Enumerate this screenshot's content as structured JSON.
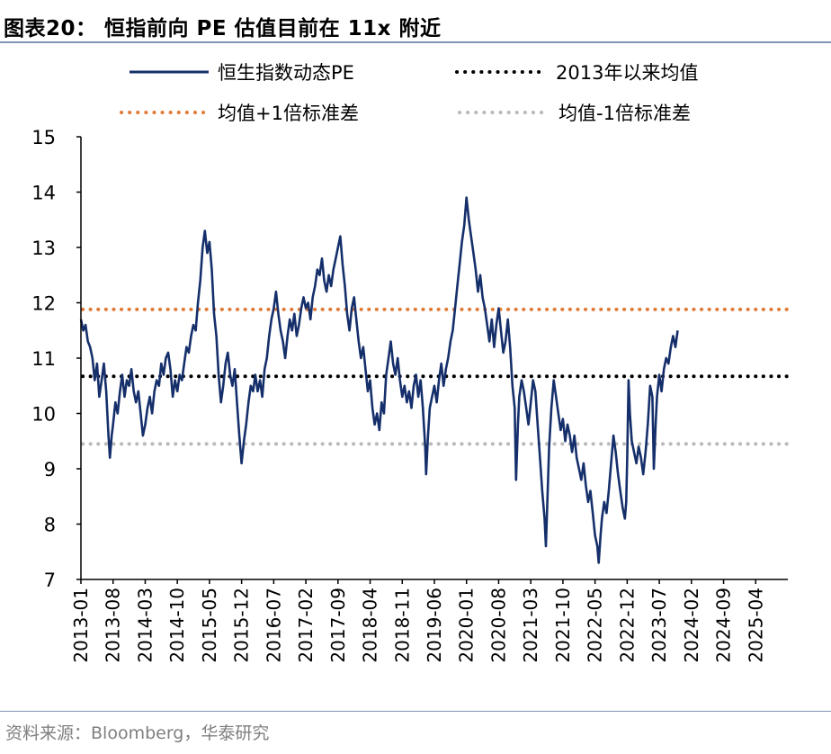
{
  "title": "图表20：  恒指前向 PE 估值目前在 11x 附近",
  "source": "资料来源：Bloomberg，华泰研究",
  "colors": {
    "pe_line": "#152F6B",
    "mean_line": "#000000",
    "plus_sd_line": "#E07B39",
    "minus_sd_line": "#B9B9B9",
    "axis": "#000000",
    "rule": "#7F96B2"
  },
  "chart_data": {
    "type": "line",
    "title": "",
    "xlabel": "",
    "ylabel": "",
    "ylim": [
      7,
      15
    ],
    "y_ticks": [
      "7",
      "8",
      "9",
      "10",
      "11",
      "12",
      "13",
      "14",
      "15"
    ],
    "x_tick_labels": [
      "2013-01",
      "2013-08",
      "2014-03",
      "2014-10",
      "2015-05",
      "2015-12",
      "2016-07",
      "2017-02",
      "2017-09",
      "2018-04",
      "2018-11",
      "2019-06",
      "2020-01",
      "2020-08",
      "2021-03",
      "2021-10",
      "2022-05",
      "2022-12",
      "2023-07",
      "2024-02",
      "2024-09",
      "2025-04"
    ],
    "x_range_months": [
      0,
      154
    ],
    "legend": [
      "恒生指数动态PE",
      "2013年以来均值",
      "均值+1倍标准差",
      "均值-1倍标准差"
    ],
    "reference_lines": [
      {
        "name": "2013年以来均值",
        "value": 10.67
      },
      {
        "name": "均值+1倍标准差",
        "value": 11.88
      },
      {
        "name": "均值-1倍标准差",
        "value": 9.45
      }
    ],
    "series": [
      {
        "name": "恒生指数动态PE",
        "x_unit": "months since 2013-01",
        "points": [
          [
            0,
            11.7
          ],
          [
            0.5,
            11.5
          ],
          [
            1,
            11.6
          ],
          [
            1.5,
            11.3
          ],
          [
            2,
            11.2
          ],
          [
            2.5,
            11.0
          ],
          [
            3,
            10.6
          ],
          [
            3.5,
            10.9
          ],
          [
            4,
            10.3
          ],
          [
            4.5,
            10.6
          ],
          [
            5,
            10.9
          ],
          [
            5.5,
            10.4
          ],
          [
            6,
            9.6
          ],
          [
            6.3,
            9.2
          ],
          [
            6.7,
            9.6
          ],
          [
            7,
            9.8
          ],
          [
            7.5,
            10.2
          ],
          [
            8,
            10.0
          ],
          [
            8.5,
            10.4
          ],
          [
            9,
            10.7
          ],
          [
            9.5,
            10.3
          ],
          [
            10,
            10.6
          ],
          [
            10.5,
            10.5
          ],
          [
            11,
            10.8
          ],
          [
            11.5,
            10.4
          ],
          [
            12,
            10.2
          ],
          [
            12.5,
            10.4
          ],
          [
            13,
            10.0
          ],
          [
            13.5,
            9.6
          ],
          [
            14,
            9.8
          ],
          [
            14.5,
            10.1
          ],
          [
            15,
            10.3
          ],
          [
            15.5,
            10.0
          ],
          [
            16,
            10.4
          ],
          [
            16.5,
            10.6
          ],
          [
            17,
            10.5
          ],
          [
            17.5,
            10.9
          ],
          [
            18,
            10.7
          ],
          [
            18.5,
            11.0
          ],
          [
            19,
            11.1
          ],
          [
            19.5,
            10.8
          ],
          [
            20,
            10.3
          ],
          [
            20.5,
            10.6
          ],
          [
            21,
            10.4
          ],
          [
            21.5,
            10.7
          ],
          [
            22,
            10.6
          ],
          [
            22.5,
            10.9
          ],
          [
            23,
            11.2
          ],
          [
            23.5,
            11.1
          ],
          [
            24,
            11.4
          ],
          [
            24.5,
            11.6
          ],
          [
            25,
            11.5
          ],
          [
            25.5,
            12.0
          ],
          [
            26,
            12.4
          ],
          [
            26.5,
            13.0
          ],
          [
            27,
            13.3
          ],
          [
            27.5,
            12.9
          ],
          [
            28,
            13.1
          ],
          [
            28.5,
            12.6
          ],
          [
            29,
            11.8
          ],
          [
            29.5,
            11.4
          ],
          [
            30,
            10.7
          ],
          [
            30.5,
            10.2
          ],
          [
            31,
            10.5
          ],
          [
            31.5,
            10.9
          ],
          [
            32,
            11.1
          ],
          [
            32.5,
            10.7
          ],
          [
            33,
            10.5
          ],
          [
            33.5,
            10.8
          ],
          [
            34,
            10.2
          ],
          [
            34.5,
            9.6
          ],
          [
            35,
            9.1
          ],
          [
            35.5,
            9.5
          ],
          [
            36,
            9.8
          ],
          [
            36.5,
            10.2
          ],
          [
            37,
            10.5
          ],
          [
            37.5,
            10.4
          ],
          [
            38,
            10.7
          ],
          [
            38.5,
            10.4
          ],
          [
            39,
            10.6
          ],
          [
            39.5,
            10.3
          ],
          [
            40,
            10.8
          ],
          [
            40.5,
            11.0
          ],
          [
            41,
            11.4
          ],
          [
            41.5,
            11.7
          ],
          [
            42,
            11.9
          ],
          [
            42.5,
            12.2
          ],
          [
            43,
            11.8
          ],
          [
            43.5,
            11.5
          ],
          [
            44,
            11.3
          ],
          [
            44.5,
            11.0
          ],
          [
            45,
            11.4
          ],
          [
            45.5,
            11.7
          ],
          [
            46,
            11.5
          ],
          [
            46.5,
            11.8
          ],
          [
            47,
            11.4
          ],
          [
            47.5,
            11.6
          ],
          [
            48,
            11.9
          ],
          [
            48.5,
            12.1
          ],
          [
            49,
            11.9
          ],
          [
            49.5,
            12.0
          ],
          [
            50,
            11.7
          ],
          [
            50.5,
            12.1
          ],
          [
            51,
            12.3
          ],
          [
            51.5,
            12.6
          ],
          [
            52,
            12.5
          ],
          [
            52.5,
            12.8
          ],
          [
            53,
            12.4
          ],
          [
            53.5,
            12.2
          ],
          [
            54,
            12.5
          ],
          [
            54.5,
            12.3
          ],
          [
            55,
            12.6
          ],
          [
            55.5,
            12.8
          ],
          [
            56,
            13.0
          ],
          [
            56.5,
            13.2
          ],
          [
            57,
            12.7
          ],
          [
            57.5,
            12.3
          ],
          [
            58,
            11.8
          ],
          [
            58.5,
            11.5
          ],
          [
            59,
            11.9
          ],
          [
            59.5,
            12.1
          ],
          [
            60,
            11.7
          ],
          [
            60.5,
            11.3
          ],
          [
            61,
            11.0
          ],
          [
            61.5,
            11.2
          ],
          [
            62,
            10.8
          ],
          [
            62.5,
            10.4
          ],
          [
            63,
            10.6
          ],
          [
            63.5,
            10.1
          ],
          [
            64,
            9.8
          ],
          [
            64.5,
            10.0
          ],
          [
            65,
            9.7
          ],
          [
            65.5,
            10.2
          ],
          [
            66,
            10.0
          ],
          [
            66.5,
            10.7
          ],
          [
            67,
            11.0
          ],
          [
            67.5,
            11.3
          ],
          [
            68,
            10.9
          ],
          [
            68.5,
            10.7
          ],
          [
            69,
            11.0
          ],
          [
            69.5,
            10.6
          ],
          [
            70,
            10.3
          ],
          [
            70.5,
            10.5
          ],
          [
            71,
            10.2
          ],
          [
            71.5,
            10.4
          ],
          [
            72,
            10.1
          ],
          [
            72.5,
            10.5
          ],
          [
            73,
            10.7
          ],
          [
            73.5,
            10.3
          ],
          [
            74,
            10.6
          ],
          [
            74.5,
            10.1
          ],
          [
            75,
            9.4
          ],
          [
            75.2,
            8.9
          ],
          [
            75.6,
            9.6
          ],
          [
            76,
            10.1
          ],
          [
            76.5,
            10.3
          ],
          [
            77,
            10.5
          ],
          [
            77.5,
            10.2
          ],
          [
            78,
            10.6
          ],
          [
            78.5,
            10.9
          ],
          [
            79,
            10.5
          ],
          [
            79.5,
            10.8
          ],
          [
            80,
            11.0
          ],
          [
            80.5,
            11.3
          ],
          [
            81,
            11.5
          ],
          [
            81.5,
            11.9
          ],
          [
            82,
            12.3
          ],
          [
            82.5,
            12.7
          ],
          [
            83,
            13.1
          ],
          [
            83.5,
            13.4
          ],
          [
            84,
            13.9
          ],
          [
            84.5,
            13.5
          ],
          [
            85,
            13.2
          ],
          [
            85.5,
            12.9
          ],
          [
            86,
            12.6
          ],
          [
            86.5,
            12.2
          ],
          [
            87,
            12.5
          ],
          [
            87.5,
            12.1
          ],
          [
            88,
            11.9
          ],
          [
            88.5,
            11.6
          ],
          [
            89,
            11.3
          ],
          [
            89.5,
            11.7
          ],
          [
            90,
            11.2
          ],
          [
            90.5,
            11.6
          ],
          [
            91,
            11.9
          ],
          [
            91.5,
            11.5
          ],
          [
            92,
            11.1
          ],
          [
            92.5,
            11.3
          ],
          [
            93,
            11.7
          ],
          [
            93.5,
            11.2
          ],
          [
            94,
            10.5
          ],
          [
            94.5,
            10.1
          ],
          [
            94.8,
            8.8
          ],
          [
            95.2,
            9.8
          ],
          [
            95.5,
            10.3
          ],
          [
            96,
            10.6
          ],
          [
            96.5,
            10.4
          ],
          [
            97,
            10.1
          ],
          [
            97.5,
            9.8
          ],
          [
            98,
            10.2
          ],
          [
            98.5,
            10.6
          ],
          [
            99,
            10.4
          ],
          [
            99.5,
            9.8
          ],
          [
            100,
            9.2
          ],
          [
            100.5,
            8.6
          ],
          [
            101,
            8.1
          ],
          [
            101.3,
            7.6
          ],
          [
            101.6,
            8.4
          ],
          [
            102,
            9.4
          ],
          [
            102.5,
            10.1
          ],
          [
            103,
            10.6
          ],
          [
            103.5,
            10.3
          ],
          [
            104,
            10.0
          ],
          [
            104.5,
            9.7
          ],
          [
            105,
            9.9
          ],
          [
            105.5,
            9.5
          ],
          [
            106,
            9.8
          ],
          [
            106.5,
            9.6
          ],
          [
            107,
            9.3
          ],
          [
            107.5,
            9.6
          ],
          [
            108,
            9.2
          ],
          [
            108.5,
            9.0
          ],
          [
            109,
            8.8
          ],
          [
            109.5,
            9.1
          ],
          [
            110,
            8.7
          ],
          [
            110.5,
            8.4
          ],
          [
            111,
            8.6
          ],
          [
            111.5,
            8.2
          ],
          [
            112,
            7.8
          ],
          [
            112.5,
            7.6
          ],
          [
            112.8,
            7.3
          ],
          [
            113.2,
            7.8
          ],
          [
            113.5,
            8.1
          ],
          [
            114,
            8.4
          ],
          [
            114.5,
            8.2
          ],
          [
            115,
            8.6
          ],
          [
            115.5,
            9.1
          ],
          [
            116,
            9.6
          ],
          [
            116.5,
            9.3
          ],
          [
            117,
            8.9
          ],
          [
            117.5,
            8.6
          ],
          [
            118,
            8.3
          ],
          [
            118.5,
            8.1
          ],
          [
            118.8,
            8.4
          ],
          [
            119,
            9.2
          ],
          [
            119.3,
            10.6
          ],
          [
            119.6,
            10.0
          ],
          [
            120,
            9.5
          ],
          [
            120.5,
            9.3
          ],
          [
            121,
            9.1
          ],
          [
            121.5,
            9.4
          ],
          [
            122,
            9.2
          ],
          [
            122.5,
            8.9
          ],
          [
            123,
            9.3
          ],
          [
            123.5,
            9.8
          ],
          [
            124,
            10.5
          ],
          [
            124.5,
            10.3
          ],
          [
            124.8,
            9.0
          ],
          [
            125.2,
            9.8
          ],
          [
            125.5,
            10.3
          ],
          [
            126,
            10.7
          ],
          [
            126.5,
            10.4
          ],
          [
            127,
            10.8
          ],
          [
            127.5,
            11.0
          ],
          [
            128,
            10.9
          ],
          [
            128.5,
            11.2
          ],
          [
            129,
            11.4
          ],
          [
            129.5,
            11.2
          ],
          [
            130,
            11.5
          ]
        ]
      }
    ]
  }
}
